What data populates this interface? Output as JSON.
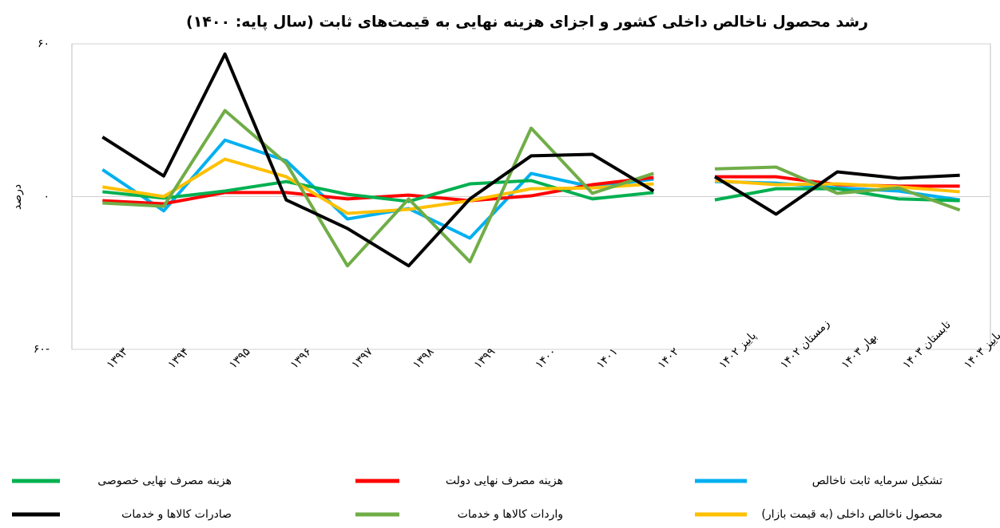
{
  "chart_data": {
    "type": "line",
    "title": "رشد محصول ناخالص داخلی کشور و اجزای هزینه نهایی به قیمت‌های ثابت (سال پایه: ۱۴۰۰)",
    "y_label": "درصد",
    "categories": [
      "۱۳۹۳",
      "۱۳۹۴",
      "۱۳۹۵",
      "۱۳۹۶",
      "۱۳۹۷",
      "۱۳۹۸",
      "۱۳۹۹",
      "۱۴۰۰",
      "۱۴۰۱",
      "۱۴۰۲",
      "پاییز ۱۴۰۲",
      "زمستان ۱۴۰۲",
      "بهار ۱۴۰۳",
      "تابستان ۱۴۰۳",
      "پاییز ۱۴۰۳"
    ],
    "ylim": [
      -60,
      60
    ],
    "yticks": [
      {
        "value": -60,
        "label": "۶۰-"
      },
      {
        "value": 0,
        "label": "۰"
      },
      {
        "value": 60,
        "label": "۶۰"
      }
    ],
    "grid": true,
    "series": [
      {
        "name": "تشکیل سرمایه ثابت ناخالص",
        "color": "#00b0f0",
        "values": [
          10.6,
          -5.6,
          22.2,
          14.1,
          -8.8,
          -4.7,
          -16.3,
          9.1,
          3.8,
          6.9,
          5.9,
          5.3,
          3.4,
          2.2,
          -1.3
        ]
      },
      {
        "name": "هزینه مصرف نهایی دولت",
        "color": "#ff0000",
        "values": [
          -1.6,
          -2.8,
          1.6,
          1.6,
          -0.9,
          0.6,
          -1.6,
          0.3,
          4.7,
          7.5,
          7.8,
          7.8,
          4.7,
          4.1,
          4.1
        ]
      },
      {
        "name": "هزینه مصرف نهایی خصوصی",
        "color": "#00b050",
        "values": [
          1.9,
          -0.6,
          2.2,
          5.9,
          0.9,
          -1.9,
          5,
          6.3,
          -0.9,
          1.6,
          -1.3,
          3.1,
          3.1,
          -0.9,
          -1.6
        ]
      },
      {
        "name": "محصول ناخالص داخلی (به قیمت بازار)",
        "color": "#ffc000",
        "values": [
          3.8,
          0,
          14.7,
          7.8,
          -6.6,
          -5,
          -1.6,
          3.1,
          3.4,
          5,
          6.3,
          4.7,
          5,
          3.8,
          1.9
        ]
      },
      {
        "name": "واردات کالاها و خدمات",
        "color": "#70ad47",
        "values": [
          -2.5,
          -3.8,
          33.8,
          13.1,
          -27.2,
          -0.9,
          -25.6,
          26.9,
          1.3,
          9.1,
          10.9,
          11.6,
          1.3,
          3.4,
          -5.3
        ]
      },
      {
        "name": "صادرات کالاها و خدمات",
        "color": "#000000",
        "values": [
          23.4,
          8.1,
          56,
          -1.3,
          -12.5,
          -27.2,
          -0.9,
          16,
          16.6,
          2.2,
          7.8,
          -6.9,
          9.7,
          7.2,
          8.4
        ]
      }
    ]
  }
}
